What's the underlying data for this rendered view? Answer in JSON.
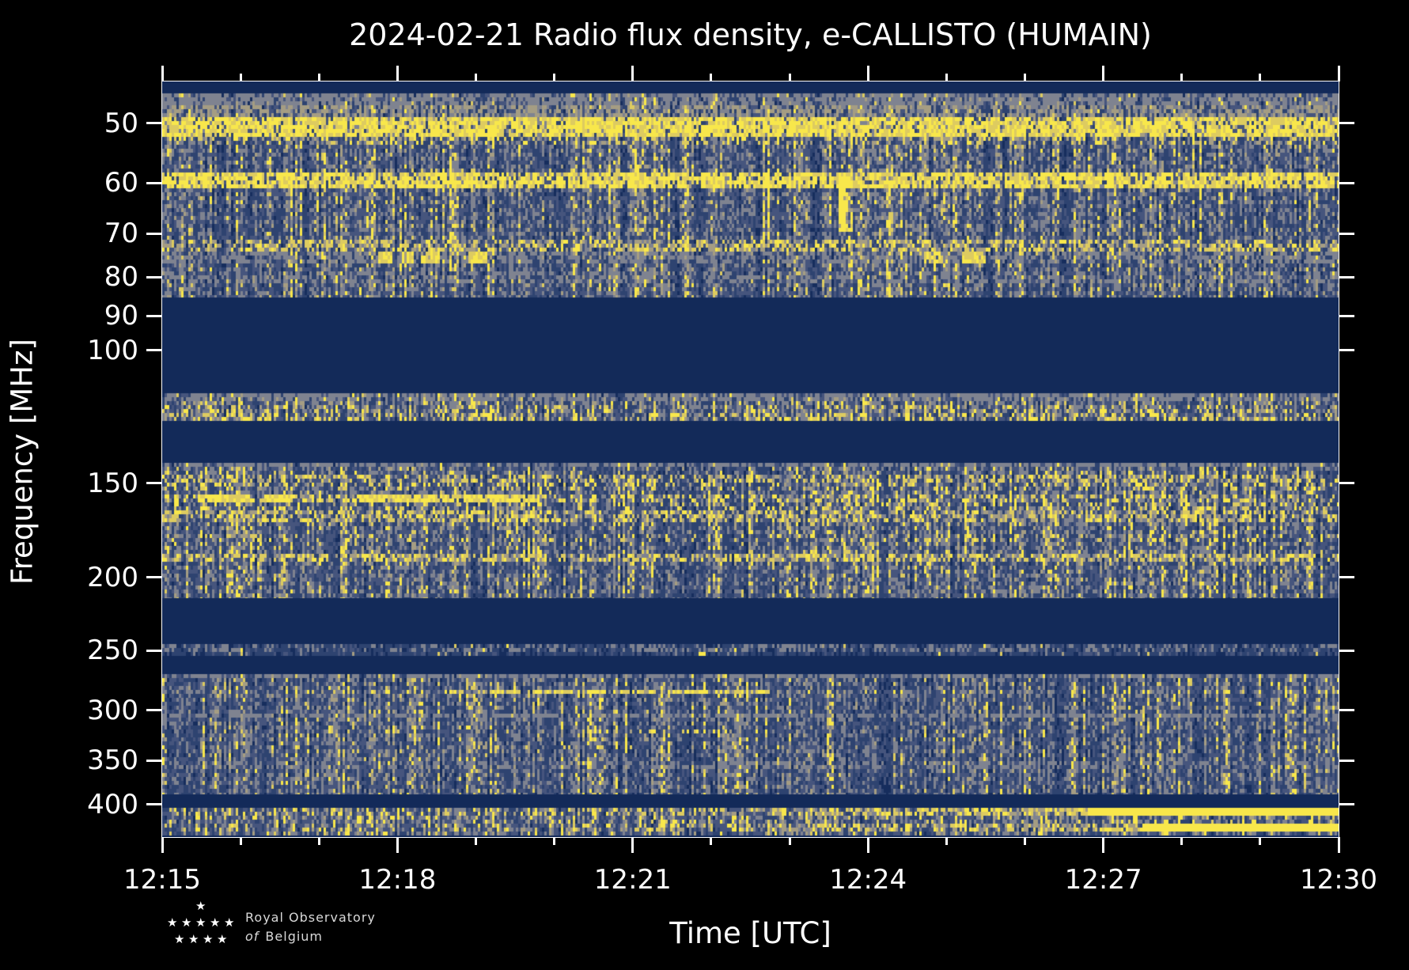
{
  "title": "2024-02-21 Radio flux density, e-CALLISTO (HUMAIN)",
  "logo": {
    "line1": "Royal Observatory",
    "line2_italic": "of",
    "line2_rest": "Belgium"
  },
  "chart_data": {
    "type": "heatmap",
    "subtype": "radio-spectrogram",
    "title": "2024-02-21 Radio flux density, e-CALLISTO (HUMAIN)",
    "xlabel": "Time [UTC]",
    "ylabel": "Frequency [MHz]",
    "x_range_minutes": 15,
    "x_major_tick_labels": [
      "12:15",
      "12:18",
      "12:21",
      "12:24",
      "12:27",
      "12:30"
    ],
    "x_major_interval_minutes": 3,
    "x_minor_interval_minutes": 1,
    "y_scale": "log",
    "y_min_mhz": 44,
    "y_max_mhz": 442,
    "y_tick_labels_mhz": [
      50,
      60,
      70,
      80,
      90,
      100,
      150,
      200,
      250,
      300,
      350,
      400
    ],
    "legend": "none",
    "grid": false,
    "colormap": {
      "name": "cividis-like",
      "blank": "#132a59",
      "levels": [
        "#162d5d",
        "#2e4370",
        "#46557d",
        "#7f8390",
        "#a59d83",
        "#ddcb60",
        "#f8e74b"
      ]
    },
    "bands": [
      {
        "f": [
          44,
          45.6
        ],
        "type": "blank"
      },
      {
        "f": [
          45.6,
          85
        ],
        "type": "noise",
        "grey_bias": 0.05,
        "lines": [
          {
            "f": [
              45.6,
              47.5
            ],
            "style": "grey",
            "density": 0.5
          },
          {
            "f": [
              47.3,
              49.2
            ],
            "style": "tan",
            "density": 0.5
          },
          {
            "f": [
              49.2,
              51.8
            ],
            "style": "bright",
            "density": 0.8
          },
          {
            "f": [
              51.8,
              53.2
            ],
            "style": "speckle",
            "density": 0.25
          },
          {
            "f": [
              58.3,
              60.6
            ],
            "style": "bright",
            "density": 0.72
          },
          {
            "f": [
              71.2,
              73.7
            ],
            "style": "speckle",
            "density": 0.45
          },
          {
            "f": [
              74.2,
              76.3
            ],
            "style": "grey",
            "density": 0.4
          },
          {
            "f": [
              74.2,
              76.3
            ],
            "style": "dots",
            "density": 0.06,
            "seg_density": 0.9,
            "segments": [
              [
                2.75,
                2.95
              ],
              [
                3.05,
                3.2
              ],
              [
                3.3,
                3.55
              ],
              [
                3.9,
                4.15
              ],
              [
                9.7,
                9.95
              ],
              [
                10.2,
                10.5
              ]
            ]
          },
          {
            "f": [
              79,
              81.5
            ],
            "style": "grey",
            "density": 0.25
          }
        ]
      },
      {
        "f": [
          85,
          114
        ],
        "type": "blank"
      },
      {
        "f": [
          114,
          124
        ],
        "type": "noise",
        "grey_bias": 0.1,
        "lines": [
          {
            "f": [
              114,
              116.5
            ],
            "style": "grey",
            "density": 0.45
          },
          {
            "f": [
              118.5,
              123.5
            ],
            "style": "dots",
            "density": 0.14
          },
          {
            "f": [
              120.5,
              123.5
            ],
            "style": "dots",
            "density": 0.1
          }
        ]
      },
      {
        "f": [
          124,
          141
        ],
        "type": "blank"
      },
      {
        "f": [
          141,
          213
        ],
        "type": "noise",
        "grey_bias": 0.06,
        "lines": [
          {
            "f": [
              141,
              143.5
            ],
            "style": "grey",
            "density": 0.5
          },
          {
            "f": [
              146,
              150
            ],
            "style": "speckle",
            "density": 0.35
          },
          {
            "f": [
              150.5,
              154
            ],
            "style": "dots",
            "density": 0.14
          },
          {
            "f": [
              155.3,
              158.6
            ],
            "style": "bright",
            "density": 0.92,
            "off_density": 0.12,
            "segments": [
              [
                0.45,
                1.12
              ],
              [
                1.28,
                1.69
              ],
              [
                2.5,
                2.83
              ],
              [
                2.93,
                3.77
              ],
              [
                3.84,
                4.72
              ]
            ]
          },
          {
            "f": [
              160,
              163
            ],
            "style": "dots",
            "density": 0.12
          },
          {
            "f": [
              163.5,
              168.5
            ],
            "style": "speckle",
            "density": 0.42
          },
          {
            "f": [
              176,
              180
            ],
            "style": "dots",
            "density": 0.1
          },
          {
            "f": [
              185.5,
              190
            ],
            "style": "speckle",
            "density": 0.5
          }
        ]
      },
      {
        "f": [
          213,
          245
        ],
        "type": "blank"
      },
      {
        "f": [
          245,
          254
        ],
        "type": "noise",
        "grey_bias": 0,
        "sparse": true,
        "lines": [
          {
            "f": [
              245,
              250
            ],
            "style": "grey",
            "density": 0.3
          },
          {
            "f": [
              245,
              254
            ],
            "style": "dots",
            "density": 0.015
          }
        ]
      },
      {
        "f": [
          254,
          269
        ],
        "type": "blank"
      },
      {
        "f": [
          269,
          388
        ],
        "type": "noise",
        "grey_bias": 0.03,
        "lines": [
          {
            "f": [
              269,
              272.5
            ],
            "style": "grey",
            "density": 0.5
          },
          {
            "f": [
              281,
              285
            ],
            "style": "bright",
            "density": 0.88,
            "off_density": 0,
            "segments": [
              [
                3.6,
                3.85
              ],
              [
                4.15,
                4.55
              ],
              [
                4.65,
                5.3
              ],
              [
                5.35,
                5.65
              ],
              [
                5.85,
                6.3
              ],
              [
                6.5,
                6.95
              ],
              [
                7.05,
                7.4
              ],
              [
                7.5,
                7.75
              ]
            ]
          },
          {
            "f": [
              302,
              307
            ],
            "style": "grey",
            "density": 0.55
          },
          {
            "f": [
              317,
              323
            ],
            "style": "dots",
            "density": 0.3,
            "off_density": 0.02,
            "segments": [
              [
                5.3,
                7.5
              ]
            ]
          },
          {
            "f": [
              334,
              340
            ],
            "style": "dots",
            "density": 0.12,
            "off_density": 0.01,
            "segments": [
              [
                3.9,
                6.3
              ]
            ]
          },
          {
            "f": [
              352,
              358
            ],
            "style": "grey",
            "density": 0.28
          }
        ]
      },
      {
        "f": [
          388,
          404
        ],
        "type": "blank"
      },
      {
        "f": [
          404,
          440
        ],
        "type": "noise",
        "grey_bias": 0.08,
        "lines": [
          {
            "f": [
              404.5,
              412
            ],
            "style": "speckle",
            "density": 0.3,
            "ramp": {
              "from": 4,
              "to": 11.5,
              "min_density": 0.12,
              "max_density": 0.7
            },
            "solid_after": 11.8
          },
          {
            "f": [
              415,
              424
            ],
            "style": "dots",
            "density": 0.05
          },
          {
            "f": [
              426,
              437
            ],
            "style": "speckle",
            "density": 0.25,
            "ramp": {
              "from": 5,
              "to": 12.3,
              "min_density": 0.1,
              "max_density": 0.65
            },
            "solid_after": 12.5
          }
        ]
      }
    ],
    "vertical_events": [
      {
        "t": 3.68,
        "halfwidth": 0.05,
        "f": [
          52,
          75
        ],
        "boost": 0.22
      },
      {
        "t": 7.7,
        "halfwidth": 0.05,
        "f": [
          58,
          72
        ],
        "boost": 0.3
      },
      {
        "t": 8.68,
        "halfwidth": 0.07,
        "f": [
          59,
          70
        ],
        "boost": 0.75
      }
    ]
  }
}
